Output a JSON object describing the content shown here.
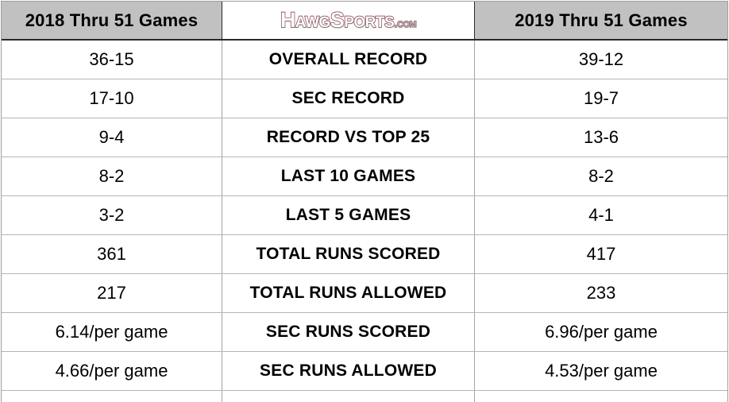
{
  "chart_data": {
    "type": "table",
    "columns": [
      "2018 Thru 51 Games",
      "HawgSports.com",
      "2019 Thru 51 Games"
    ],
    "rows": [
      [
        "36-15",
        "OVERALL RECORD",
        "39-12"
      ],
      [
        "17-10",
        "SEC RECORD",
        "19-7"
      ],
      [
        "9-4",
        "RECORD VS TOP 25",
        "13-6"
      ],
      [
        "8-2",
        "LAST 10 GAMES",
        "8-2"
      ],
      [
        "3-2",
        "LAST 5 GAMES",
        "4-1"
      ],
      [
        "361",
        "TOTAL RUNS SCORED",
        "417"
      ],
      [
        "217",
        "TOTAL RUNS ALLOWED",
        "233"
      ],
      [
        "6.14/per game",
        "SEC RUNS SCORED",
        "6.96/per game"
      ],
      [
        "4.66/per game",
        "SEC RUNS ALLOWED",
        "4.53/per game"
      ]
    ]
  },
  "logo": {
    "main": "HawgSports",
    "suffix": ".com"
  },
  "colors": {
    "header_bg": "#c2c1c2",
    "header_border": "#2a2a2a",
    "outer_border": "#9e9e9e",
    "grid_v": "#a3a3a3",
    "grid_h": "#b5b5b5",
    "logo_red": "#8e2236",
    "logo_main_fill": "#ffffff",
    "logo_suffix_fill": "#b9b8b9",
    "text": "#000000"
  }
}
